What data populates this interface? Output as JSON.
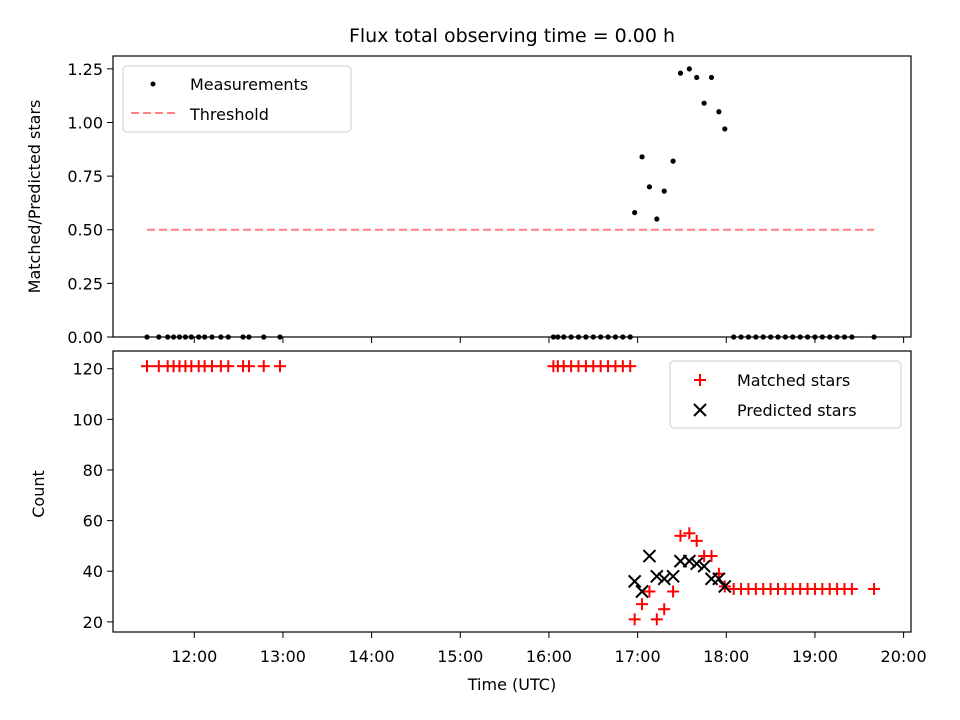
{
  "chart_data": [
    {
      "type": "scatter",
      "title": "Flux total observing time = 0.00 h",
      "xlabel": "",
      "ylabel": "Matched/Predicted stars",
      "ylim": [
        0,
        1.31
      ],
      "yticks": [
        0.0,
        0.25,
        0.5,
        0.75,
        1.0,
        1.25
      ],
      "ytick_labels": [
        "0.00",
        "0.25",
        "0.50",
        "0.75",
        "1.00",
        "1.25"
      ],
      "xlim": [
        "11:05",
        "20:05"
      ],
      "legend": "top-left",
      "series": [
        {
          "name": "Measurements",
          "color": "#000000",
          "marker": "dot",
          "points": [
            [
              "11:28",
              0
            ],
            [
              "11:36",
              0
            ],
            [
              "11:42",
              0
            ],
            [
              "11:46",
              0
            ],
            [
              "11:50",
              0
            ],
            [
              "11:54",
              0
            ],
            [
              "11:58",
              0
            ],
            [
              "12:03",
              0
            ],
            [
              "12:07",
              0
            ],
            [
              "12:12",
              0
            ],
            [
              "12:18",
              0
            ],
            [
              "12:23",
              0
            ],
            [
              "12:33",
              0
            ],
            [
              "12:37",
              0
            ],
            [
              "12:47",
              0
            ],
            [
              "12:58",
              0
            ],
            [
              "16:03",
              0
            ],
            [
              "16:06",
              0
            ],
            [
              "16:10",
              0
            ],
            [
              "16:15",
              0
            ],
            [
              "16:20",
              0
            ],
            [
              "16:25",
              0
            ],
            [
              "16:30",
              0
            ],
            [
              "16:35",
              0
            ],
            [
              "16:40",
              0
            ],
            [
              "16:45",
              0
            ],
            [
              "16:50",
              0
            ],
            [
              "16:55",
              0
            ],
            [
              "16:58",
              0.58
            ],
            [
              "17:03",
              0.84
            ],
            [
              "17:08",
              0.7
            ],
            [
              "17:13",
              0.55
            ],
            [
              "17:18",
              0.68
            ],
            [
              "17:24",
              0.82
            ],
            [
              "17:29",
              1.23
            ],
            [
              "17:35",
              1.25
            ],
            [
              "17:40",
              1.21
            ],
            [
              "17:45",
              1.09
            ],
            [
              "17:50",
              1.21
            ],
            [
              "17:55",
              1.05
            ],
            [
              "17:59",
              0.97
            ],
            [
              "18:05",
              0
            ],
            [
              "18:10",
              0
            ],
            [
              "18:15",
              0
            ],
            [
              "18:20",
              0
            ],
            [
              "18:25",
              0
            ],
            [
              "18:30",
              0
            ],
            [
              "18:35",
              0
            ],
            [
              "18:40",
              0
            ],
            [
              "18:45",
              0
            ],
            [
              "18:50",
              0
            ],
            [
              "18:55",
              0
            ],
            [
              "19:00",
              0
            ],
            [
              "19:05",
              0
            ],
            [
              "19:10",
              0
            ],
            [
              "19:15",
              0
            ],
            [
              "19:20",
              0
            ],
            [
              "19:25",
              0
            ],
            [
              "19:40",
              0
            ]
          ]
        },
        {
          "name": "Threshold",
          "color": "#ff8080",
          "line_style": "dashed",
          "points": [
            [
              "11:28",
              0.5
            ],
            [
              "19:40",
              0.5
            ]
          ]
        }
      ]
    },
    {
      "type": "scatter",
      "title": "",
      "xlabel": "Time (UTC)",
      "ylabel": "Count",
      "ylim": [
        16,
        127
      ],
      "yticks": [
        20,
        40,
        60,
        80,
        100,
        120
      ],
      "ytick_labels": [
        "20",
        "40",
        "60",
        "80",
        "100",
        "120"
      ],
      "xlim": [
        "11:05",
        "20:05"
      ],
      "xticks": [
        "12:00",
        "13:00",
        "14:00",
        "15:00",
        "16:00",
        "17:00",
        "18:00",
        "19:00",
        "20:00"
      ],
      "legend": "top-right",
      "series": [
        {
          "name": "Matched stars",
          "color": "#ff0000",
          "marker": "plus",
          "points": [
            [
              "11:28",
              121
            ],
            [
              "11:36",
              121
            ],
            [
              "11:42",
              121
            ],
            [
              "11:46",
              121
            ],
            [
              "11:50",
              121
            ],
            [
              "11:54",
              121
            ],
            [
              "11:58",
              121
            ],
            [
              "12:03",
              121
            ],
            [
              "12:07",
              121
            ],
            [
              "12:12",
              121
            ],
            [
              "12:18",
              121
            ],
            [
              "12:23",
              121
            ],
            [
              "12:33",
              121
            ],
            [
              "12:37",
              121
            ],
            [
              "12:47",
              121
            ],
            [
              "12:58",
              121
            ],
            [
              "16:03",
              121
            ],
            [
              "16:06",
              121
            ],
            [
              "16:10",
              121
            ],
            [
              "16:15",
              121
            ],
            [
              "16:20",
              121
            ],
            [
              "16:25",
              121
            ],
            [
              "16:30",
              121
            ],
            [
              "16:35",
              121
            ],
            [
              "16:40",
              121
            ],
            [
              "16:45",
              121
            ],
            [
              "16:50",
              121
            ],
            [
              "16:55",
              121
            ],
            [
              "16:58",
              21
            ],
            [
              "17:03",
              27
            ],
            [
              "17:08",
              32
            ],
            [
              "17:13",
              21
            ],
            [
              "17:18",
              25
            ],
            [
              "17:24",
              32
            ],
            [
              "17:29",
              54
            ],
            [
              "17:35",
              55
            ],
            [
              "17:40",
              52
            ],
            [
              "17:45",
              46
            ],
            [
              "17:50",
              46
            ],
            [
              "17:55",
              39
            ],
            [
              "17:59",
              34
            ],
            [
              "18:05",
              33
            ],
            [
              "18:10",
              33
            ],
            [
              "18:15",
              33
            ],
            [
              "18:20",
              33
            ],
            [
              "18:25",
              33
            ],
            [
              "18:30",
              33
            ],
            [
              "18:35",
              33
            ],
            [
              "18:40",
              33
            ],
            [
              "18:45",
              33
            ],
            [
              "18:50",
              33
            ],
            [
              "18:55",
              33
            ],
            [
              "19:00",
              33
            ],
            [
              "19:05",
              33
            ],
            [
              "19:10",
              33
            ],
            [
              "19:15",
              33
            ],
            [
              "19:20",
              33
            ],
            [
              "19:25",
              33
            ],
            [
              "19:40",
              33
            ]
          ]
        },
        {
          "name": "Predicted stars",
          "color": "#000000",
          "marker": "x",
          "points": [
            [
              "16:58",
              36
            ],
            [
              "17:03",
              32
            ],
            [
              "17:08",
              46
            ],
            [
              "17:13",
              38
            ],
            [
              "17:18",
              37
            ],
            [
              "17:24",
              38
            ],
            [
              "17:29",
              44
            ],
            [
              "17:35",
              44
            ],
            [
              "17:40",
              43
            ],
            [
              "17:45",
              42
            ],
            [
              "17:50",
              37
            ],
            [
              "17:55",
              37
            ],
            [
              "17:59",
              34
            ]
          ]
        }
      ]
    }
  ]
}
